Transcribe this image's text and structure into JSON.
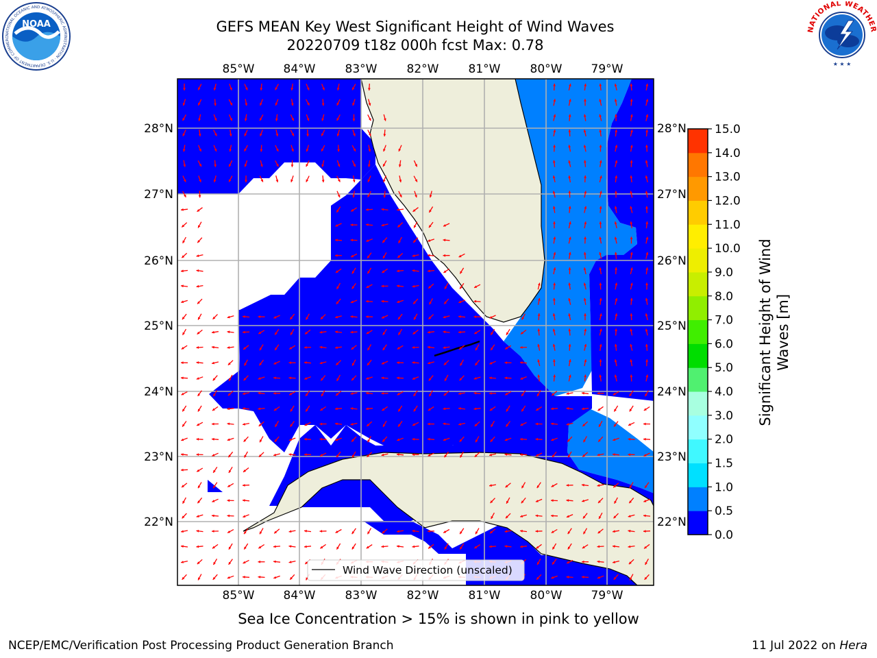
{
  "header": {
    "title_line1": "GEFS MEAN Key West Significant Height of Wind Waves",
    "title_line2": "20220709 t18z 000h fcst   Max: 0.78"
  },
  "logos": {
    "noaa_text": "NOAA",
    "noaa_ring": "NATIONAL OCEANIC AND ATMOSPHERIC ADMINISTRATION · U.S. DEPARTMENT OF COMMERCE",
    "nws_ring": "NATIONAL WEATHER SERVICE"
  },
  "map": {
    "lon_labels": [
      "85°W",
      "84°W",
      "83°W",
      "82°W",
      "81°W",
      "80°W",
      "79°W"
    ],
    "lat_labels": [
      "28°N",
      "27°N",
      "26°N",
      "25°N",
      "24°N",
      "23°N",
      "22°N"
    ],
    "legend_label": "Wind Wave Direction (unscaled)",
    "colors": {
      "land": "#eeeedb",
      "band_0_0p5": "#0000ff",
      "band_0p5_1": "#0080ff",
      "grid": "#b0b0b0",
      "arrows": "#ff0000"
    }
  },
  "colorbar": {
    "label_line1": "Significant Height of Wind",
    "label_line2": "Waves [m]",
    "ticks": [
      "0.0",
      "0.5",
      "1.0",
      "1.5",
      "2.0",
      "3.0",
      "4.0",
      "5.0",
      "6.0",
      "7.0",
      "8.0",
      "9.0",
      "10.0",
      "11.0",
      "12.0",
      "13.0",
      "14.0",
      "15.0"
    ],
    "colors": [
      "#0000ff",
      "#0080ff",
      "#00e0ff",
      "#40f8ff",
      "#90ffff",
      "#a8ffe0",
      "#50f070",
      "#00dd00",
      "#40ee00",
      "#90ee00",
      "#c8ee00",
      "#eeee00",
      "#ffee00",
      "#ffcc00",
      "#ff9900",
      "#ff7700",
      "#ff3300",
      "#ff0000"
    ]
  },
  "notes": {
    "ice": "Sea Ice Concentration > 15% is shown in pink to yellow"
  },
  "footer": {
    "left": "NCEP/EMC/Verification Post Processing Product Generation Branch",
    "right_prefix": "11 Jul 2022 on ",
    "right_host": "Hera"
  }
}
